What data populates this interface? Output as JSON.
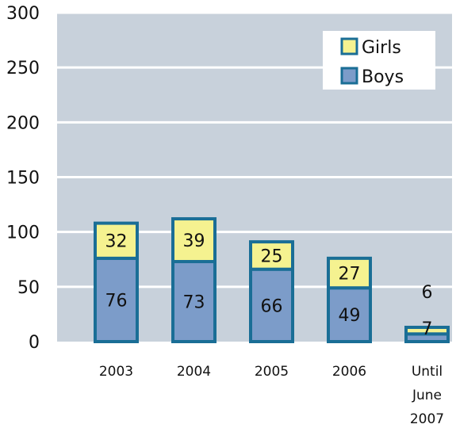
{
  "chart_data": {
    "type": "bar",
    "stacked": true,
    "categories": [
      "2003",
      "2004",
      "2005",
      "2006",
      "Until June 2007"
    ],
    "category_label_lines": [
      [
        "2003"
      ],
      [
        "2004"
      ],
      [
        "2005"
      ],
      [
        "2006"
      ],
      [
        "Until",
        "June",
        "2007"
      ]
    ],
    "series": [
      {
        "name": "Boys",
        "values": [
          76,
          73,
          66,
          49,
          7
        ],
        "color": "#7c9cc9"
      },
      {
        "name": "Girls",
        "values": [
          32,
          39,
          25,
          27,
          6
        ],
        "color": "#f5f290"
      }
    ],
    "ylim": [
      0,
      300
    ],
    "yticks": [
      0,
      50,
      100,
      150,
      200,
      250,
      300
    ],
    "grid": true,
    "legend_position": "top-right",
    "colors": {
      "plot_background": "#c8d1db",
      "gridline": "#ffffff",
      "bar_outline": "#1a6e96",
      "legend_background": "#ffffff"
    }
  }
}
